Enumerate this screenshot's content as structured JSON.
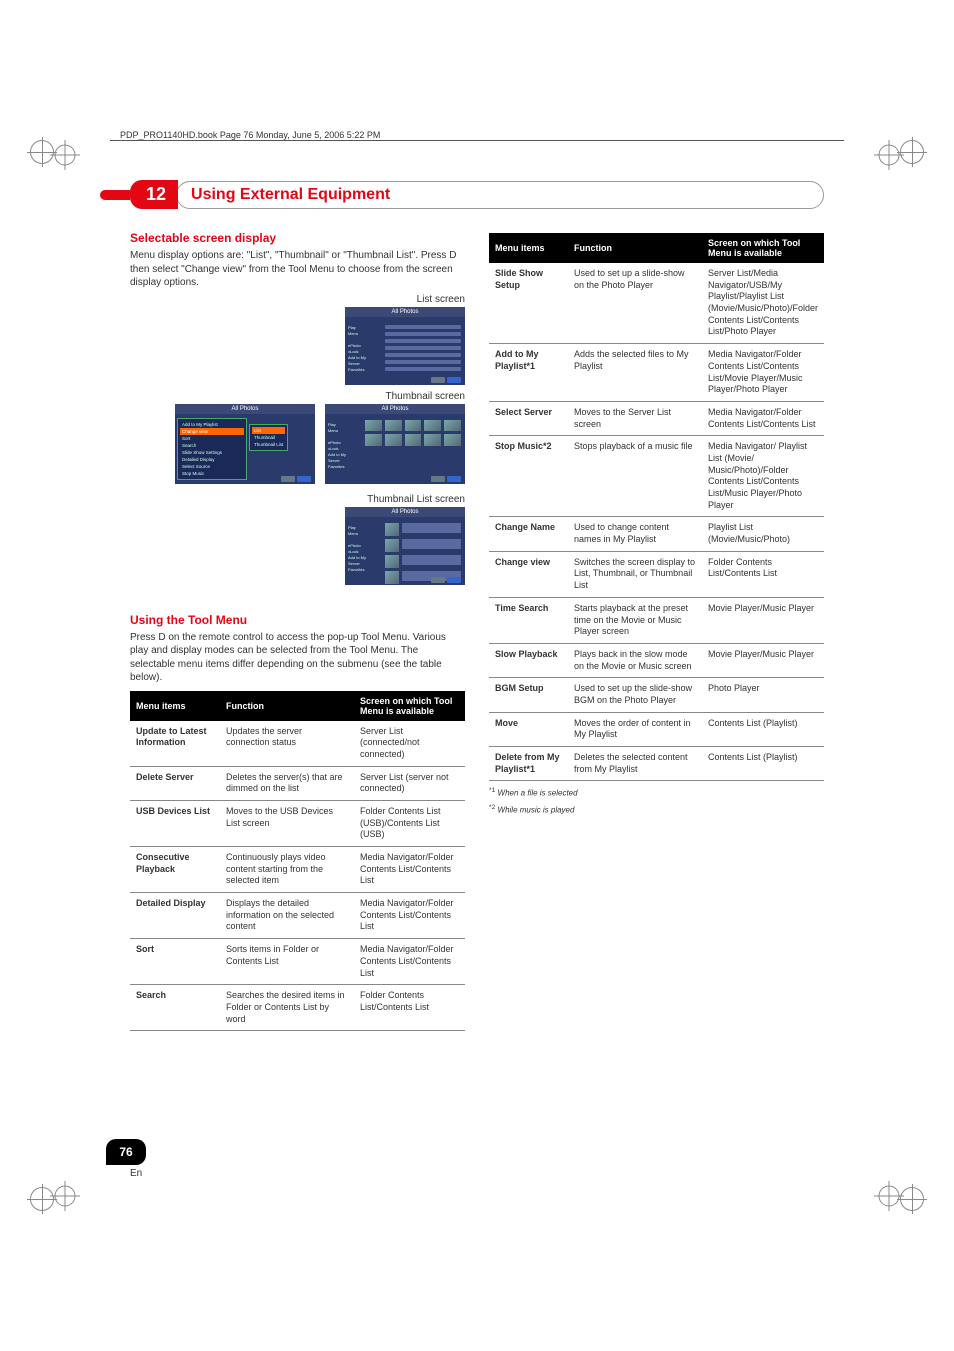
{
  "header_note": "PDP_PRO1140HD.book  Page 76  Monday, June 5, 2006  5:22 PM",
  "chapter": {
    "num": "12",
    "title": "Using External Equipment"
  },
  "h_selectable": "Selectable screen display",
  "p_selectable": "Menu display options are: \"List\", \"Thumbnail\" or \"Thumbnail List\". Press D then select \"Change view\" from the Tool Menu to choose from the screen display options.",
  "cap_list": "List screen",
  "cap_thumb": "Thumbnail screen",
  "cap_thumblist": "Thumbnail List screen",
  "h_tool": "Using the Tool Menu",
  "p_tool": "Press D on the remote control to access the pop-up Tool Menu. Various play and display modes can be selected from the Tool Menu. The selectable menu items differ depending on the submenu (see the table below).",
  "table_headers": {
    "c1": "Menu items",
    "c2": "Function",
    "c3": "Screen on which Tool Menu is available"
  },
  "rows_left": [
    {
      "a": "Update to Latest Information",
      "b": "Updates the server connection status",
      "c": "Server List (connected/not connected)"
    },
    {
      "a": "Delete Server",
      "b": "Deletes the server(s) that are dimmed on the list",
      "c": "Server List (server not connected)"
    },
    {
      "a": "USB Devices List",
      "b": "Moves to the USB Devices List screen",
      "c": "Folder Contents List (USB)/Contents List (USB)"
    },
    {
      "a": "Consecutive Playback",
      "b": "Continuously plays video content starting from the selected item",
      "c": "Media Navigator/Folder Contents List/Contents List"
    },
    {
      "a": "Detailed Display",
      "b": "Displays the detailed information on the selected content",
      "c": "Media Navigator/Folder Contents List/Contents List"
    },
    {
      "a": "Sort",
      "b": "Sorts items in Folder or Contents List",
      "c": "Media Navigator/Folder Contents List/Contents List"
    },
    {
      "a": "Search",
      "b": "Searches the desired items in Folder or Contents List by word",
      "c": "Folder Contents List/Contents List"
    }
  ],
  "rows_right": [
    {
      "a": "Slide Show Setup",
      "b": "Used to set up a slide-show on the Photo Player",
      "c": "Server List/Media Navigator/USB/My Playlist/Playlist List (Movie/Music/Photo)/Folder Contents List/Contents List/Photo Player"
    },
    {
      "a": "Add to My Playlist*1",
      "b": "Adds the selected files to My Playlist",
      "c": "Media Navigator/Folder Contents List/Contents List/Movie Player/Music Player/Photo Player"
    },
    {
      "a": "Select Server",
      "b": "Moves to the Server List screen",
      "c": "Media Navigator/Folder Contents List/Contents List"
    },
    {
      "a": "Stop Music*2",
      "b": "Stops playback of a music file",
      "c": "Media Navigator/ Playlist List (Movie/ Music/Photo)/Folder Contents List/Contents List/Music Player/Photo Player"
    },
    {
      "a": "Change Name",
      "b": "Used to change content names in My Playlist",
      "c": "Playlist List (Movie/Music/Photo)"
    },
    {
      "a": "Change view",
      "b": "Switches the screen display to List, Thumbnail, or Thumbnail List",
      "c": "Folder Contents List/Contents List"
    },
    {
      "a": "Time Search",
      "b": "Starts playback at the preset time on the Movie or Music Player screen",
      "c": "Movie Player/Music Player"
    },
    {
      "a": "Slow Playback",
      "b": "Plays back in the slow mode on the Movie or Music screen",
      "c": "Movie Player/Music Player"
    },
    {
      "a": "BGM Setup",
      "b": "Used to set up the slide-show BGM on the Photo Player",
      "c": "Photo Player"
    },
    {
      "a": "Move",
      "b": "Moves the order of content in My Playlist",
      "c": "Contents List (Playlist)"
    },
    {
      "a": "Delete from My Playlist*1",
      "b": "Deletes the selected content from My Playlist",
      "c": "Contents List (Playlist)"
    }
  ],
  "footnotes": {
    "f1": "When a file is selected",
    "f2": "While music is played",
    "s1": "*1",
    "s2": "*2"
  },
  "page_num": "76",
  "page_lang": "En",
  "mock_title": "All Photos",
  "mock_menu": [
    "Add to My Playlist",
    "Change view",
    "Sort",
    "Search",
    "Slide Show Settings",
    "Detailed Display",
    "Select Source",
    "Stop Music"
  ],
  "mock_submenu": [
    "List",
    "Thumbnail",
    "Thumbnail List"
  ]
}
